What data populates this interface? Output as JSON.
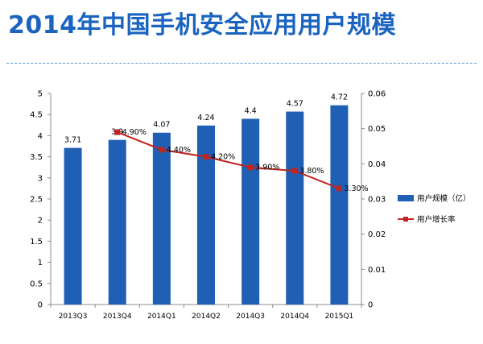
{
  "title": "2014年中国手机安全应用用户规模",
  "chart_data": {
    "type": "bar",
    "categories": [
      "2013Q3",
      "2013Q4",
      "2014Q1",
      "2014Q2",
      "2014Q3",
      "2014Q4",
      "2015Q1"
    ],
    "series": [
      {
        "name": "用户规模（亿）",
        "type": "bar",
        "axis": "left",
        "values": [
          3.71,
          3.9,
          4.07,
          4.24,
          4.4,
          4.57,
          4.72
        ],
        "labels": [
          "3.71",
          "3.9",
          "4.07",
          "4.24",
          "4.4",
          "4.57",
          "4.72"
        ],
        "color": "#1f5fb4"
      },
      {
        "name": "用户增长率",
        "type": "line",
        "axis": "right",
        "values": [
          null,
          0.049,
          0.044,
          0.042,
          0.039,
          0.038,
          0.033
        ],
        "labels": [
          "",
          "4.90%",
          "4.40%",
          "4.20%",
          "3.90%",
          "3.80%",
          "3.30%"
        ],
        "color": "#c0251f"
      }
    ],
    "y_left": {
      "min": 0,
      "max": 5,
      "ticks": [
        "0",
        "0.5",
        "1",
        "1.5",
        "2",
        "2.5",
        "3",
        "3.5",
        "4",
        "4.5",
        "5"
      ]
    },
    "y_right": {
      "min": 0,
      "max": 0.06,
      "ticks": [
        "0",
        "0.01",
        "0.02",
        "0.03",
        "0.04",
        "0.05",
        "0.06"
      ]
    },
    "legend_position": "right"
  }
}
